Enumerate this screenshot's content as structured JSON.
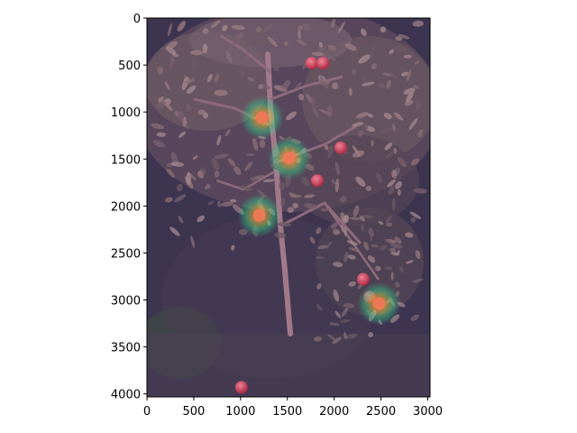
{
  "figure": {
    "x_ticks": [
      {
        "label": "0",
        "value": 0
      },
      {
        "label": "500",
        "value": 500
      },
      {
        "label": "1000",
        "value": 1000
      },
      {
        "label": "1500",
        "value": 1500
      },
      {
        "label": "2000",
        "value": 2000
      },
      {
        "label": "2500",
        "value": 2500
      },
      {
        "label": "3000",
        "value": 3000
      }
    ],
    "y_ticks": [
      {
        "label": "0",
        "value": 0
      },
      {
        "label": "500",
        "value": 500
      },
      {
        "label": "1000",
        "value": 1000
      },
      {
        "label": "1500",
        "value": 1500
      },
      {
        "label": "2000",
        "value": 2000
      },
      {
        "label": "2500",
        "value": 2500
      },
      {
        "label": "3000",
        "value": 3000
      },
      {
        "label": "3500",
        "value": 3500
      },
      {
        "label": "4000",
        "value": 4000
      }
    ],
    "x_range": [
      0,
      3024
    ],
    "y_range": [
      0,
      4032
    ],
    "image": {
      "description": "apple tree photograph with heatmap overlay",
      "hotspots_data": [
        {
          "x": 1230,
          "y": 1060
        },
        {
          "x": 1520,
          "y": 1490
        },
        {
          "x": 1200,
          "y": 2100
        },
        {
          "x": 2480,
          "y": 3040
        }
      ],
      "apples_data": [
        {
          "x": 1760,
          "y": 480
        },
        {
          "x": 2070,
          "y": 1380
        },
        {
          "x": 1820,
          "y": 1730
        },
        {
          "x": 2310,
          "y": 2780
        },
        {
          "x": 2380,
          "y": 2970
        },
        {
          "x": 1010,
          "y": 3930
        },
        {
          "x": 1880,
          "y": 480
        }
      ]
    }
  }
}
